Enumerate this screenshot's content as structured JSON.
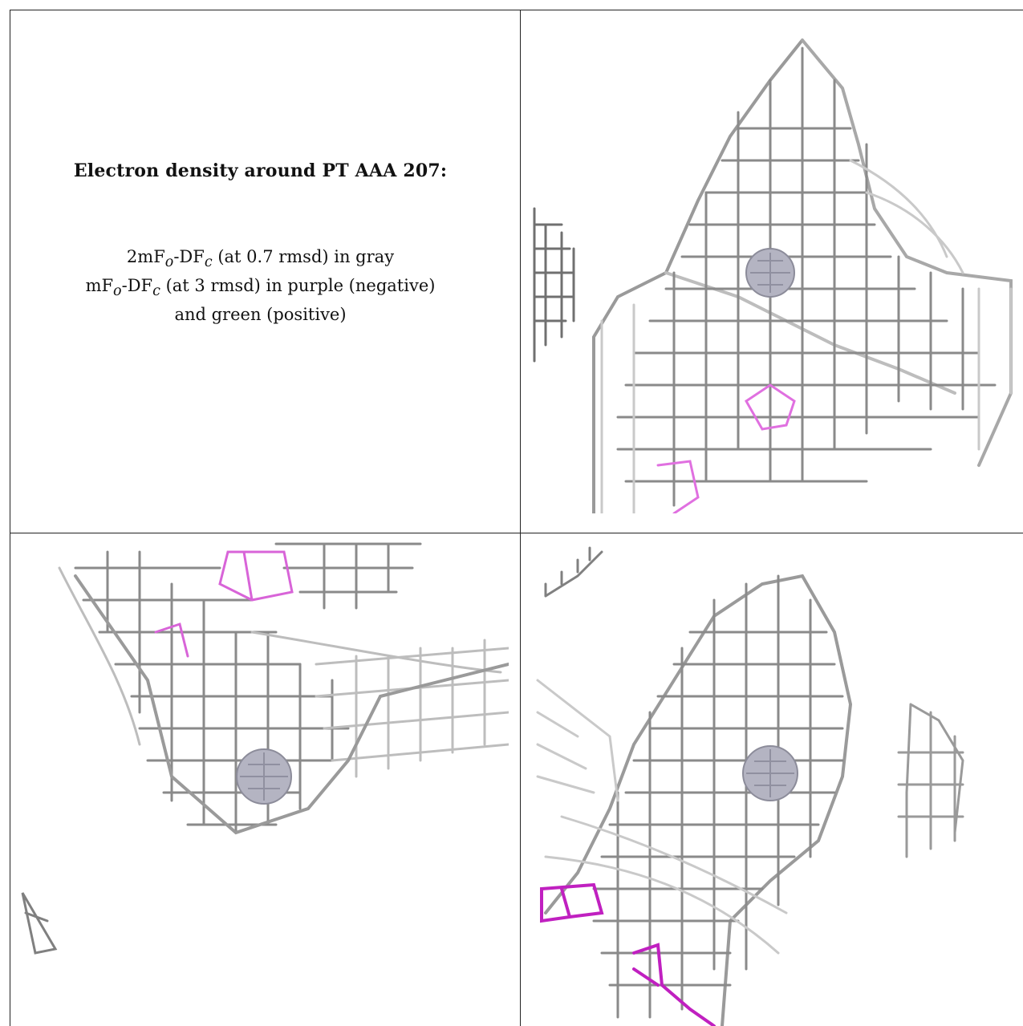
{
  "caption": {
    "title": "Electron density around PT AAA 207:",
    "line1_pre": "2mF",
    "line1_sub1": "o",
    "line1_mid": "-DF",
    "line1_sub2": "c",
    "line1_post": " (at 0.7 rmsd) in gray",
    "line2_pre": "mF",
    "line2_sub1": "o",
    "line2_mid": "-DF",
    "line2_sub2": "c",
    "line2_post": " (at 3 rmsd) in purple (negative)",
    "line3": "and green (positive)"
  },
  "colors": {
    "mesh_gray": "#8f8f8f",
    "mesh_light": "#c8c8c8",
    "mesh_dark": "#555555",
    "negative_purple": "#c000c0",
    "atom": "#a8a8b8",
    "border": "#222222"
  },
  "panels": [
    {
      "name": "view-top-right"
    },
    {
      "name": "view-bottom-left"
    },
    {
      "name": "view-bottom-right"
    }
  ]
}
